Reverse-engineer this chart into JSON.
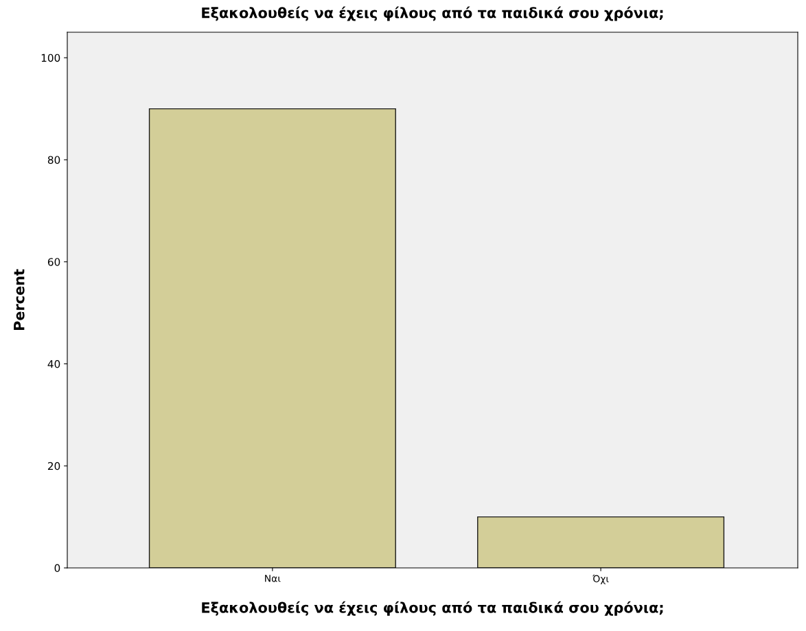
{
  "chart_data": {
    "type": "bar",
    "title": "Εξακολουθείς να έχεις φίλους από τα παιδικά σου χρόνια;",
    "xlabel": "Εξακολουθείς να έχεις φίλους από τα παιδικά σου χρόνια;",
    "ylabel": "Percent",
    "categories": [
      "Ναι",
      "Όχι"
    ],
    "values": [
      90,
      10
    ],
    "color": "#d3ce98",
    "ylim": [
      0,
      105
    ],
    "yticks": [
      0,
      20,
      40,
      60,
      80,
      100
    ],
    "grid": false,
    "legend": false
  }
}
